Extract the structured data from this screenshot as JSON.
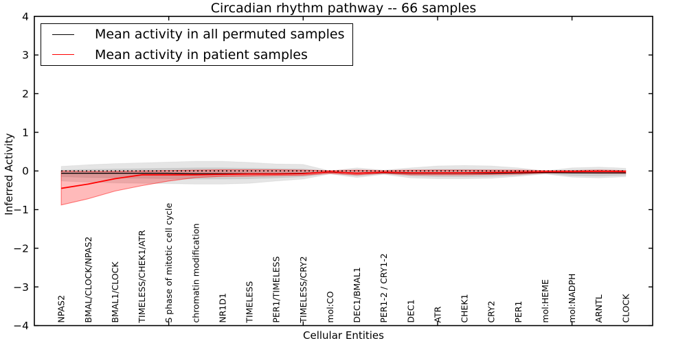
{
  "title": "Circadian rhythm pathway -- 66 samples",
  "legend": {
    "items": [
      {
        "label": "Mean activity in all permuted samples",
        "color": "#000000"
      },
      {
        "label": "Mean activity in patient samples",
        "color": "#ff0000"
      }
    ]
  },
  "axes": {
    "xlabel": "Cellular Entities",
    "ylabel": "Inferred Activity",
    "ylim": [
      -4,
      4
    ],
    "xlim": [
      0,
      23
    ],
    "yticks": [
      -4,
      -3,
      -2,
      -1,
      0,
      1,
      2,
      3,
      4
    ],
    "xticks_unlabeled": [
      5,
      10,
      15,
      20
    ],
    "grid": "off",
    "legend_position": "upper-left",
    "frame_color": "#000000"
  },
  "chart_data": {
    "type": "line",
    "title": "Circadian rhythm pathway -- 66 samples",
    "xlabel": "Cellular Entities",
    "ylabel": "Inferred Activity",
    "ylim": [
      -4,
      4
    ],
    "categories": [
      "NPAS2",
      "BMAL/CLOCK/NPAS2",
      "BMAL1/CLOCK",
      "TIMELESS/CHEK1/ATR",
      "S phase of mitotic cell cycle",
      "chromatin modification",
      "NR1D1",
      "TIMELESS",
      "PER1/TIMELESS",
      "TIMELESS/CRY2",
      "mol:CO",
      "DEC1/BMAL1",
      "PER1-2 / CRY1-2",
      "DEC1",
      "ATR",
      "CHEK1",
      "CRY2",
      "PER1",
      "mol:HEME",
      "mol:NADPH",
      "ARNTL",
      "CLOCK"
    ],
    "x": [
      1,
      2,
      3,
      4,
      5,
      6,
      7,
      8,
      9,
      10,
      11,
      12,
      13,
      14,
      15,
      16,
      17,
      18,
      19,
      20,
      21,
      22
    ],
    "series": [
      {
        "name": "Mean activity in all permuted samples",
        "color": "#000000",
        "width": 1.3,
        "values": [
          -0.06,
          -0.06,
          -0.06,
          -0.06,
          -0.06,
          -0.07,
          -0.07,
          -0.07,
          -0.07,
          -0.06,
          -0.03,
          -0.06,
          -0.04,
          -0.06,
          -0.06,
          -0.06,
          -0.06,
          -0.05,
          -0.04,
          -0.05,
          -0.05,
          -0.05
        ]
      },
      {
        "name": "Mean activity in patient samples",
        "color": "#ff0000",
        "width": 1.8,
        "values": [
          -0.45,
          -0.34,
          -0.2,
          -0.1,
          -0.1,
          -0.1,
          -0.09,
          -0.08,
          -0.08,
          -0.07,
          -0.02,
          -0.06,
          -0.03,
          -0.05,
          -0.05,
          -0.05,
          -0.04,
          -0.03,
          -0.02,
          -0.02,
          -0.01,
          -0.02
        ]
      }
    ],
    "bands": [
      {
        "name": "permuted-range-outer",
        "color": "#000000",
        "alpha": 0.1,
        "edge_alpha": 0.05,
        "upper": [
          0.12,
          0.16,
          0.19,
          0.21,
          0.23,
          0.25,
          0.25,
          0.22,
          0.18,
          0.17,
          0.0,
          0.08,
          0.02,
          0.08,
          0.13,
          0.14,
          0.13,
          0.08,
          0.0,
          0.08,
          0.1,
          0.07
        ],
        "lower": [
          -0.26,
          -0.29,
          -0.31,
          -0.32,
          -0.33,
          -0.34,
          -0.34,
          -0.32,
          -0.26,
          -0.21,
          -0.08,
          -0.17,
          -0.09,
          -0.18,
          -0.2,
          -0.2,
          -0.19,
          -0.14,
          -0.08,
          -0.16,
          -0.18,
          -0.15
        ]
      },
      {
        "name": "permuted-range-inner",
        "color": "#000000",
        "alpha": 0.1,
        "edge_alpha": 0.05,
        "upper": [
          0.02,
          0.04,
          0.05,
          0.06,
          0.07,
          0.08,
          0.08,
          0.07,
          0.06,
          0.05,
          -0.01,
          0.02,
          -0.01,
          0.02,
          0.04,
          0.04,
          0.03,
          0.02,
          -0.02,
          0.02,
          0.03,
          0.01
        ],
        "lower": [
          -0.15,
          -0.17,
          -0.18,
          -0.19,
          -0.2,
          -0.21,
          -0.21,
          -0.2,
          -0.18,
          -0.15,
          -0.06,
          -0.13,
          -0.07,
          -0.13,
          -0.15,
          -0.15,
          -0.14,
          -0.11,
          -0.06,
          -0.12,
          -0.13,
          -0.11
        ]
      },
      {
        "name": "patient-range",
        "color": "#ff0000",
        "alpha": 0.27,
        "edge_alpha": 0.5,
        "upper": [
          0.0,
          -0.01,
          -0.01,
          0.0,
          0.01,
          0.02,
          0.03,
          0.03,
          0.03,
          0.02,
          0.01,
          0.02,
          0.01,
          0.02,
          0.02,
          0.02,
          0.02,
          0.02,
          0.01,
          0.01,
          0.02,
          0.01
        ],
        "lower": [
          -0.88,
          -0.72,
          -0.52,
          -0.38,
          -0.26,
          -0.17,
          -0.14,
          -0.13,
          -0.12,
          -0.11,
          -0.06,
          -0.1,
          -0.06,
          -0.1,
          -0.1,
          -0.1,
          -0.09,
          -0.08,
          -0.05,
          -0.05,
          -0.06,
          -0.06
        ]
      }
    ],
    "zero_line": {
      "y": 0,
      "style": "dotted",
      "color": "#000000"
    }
  }
}
